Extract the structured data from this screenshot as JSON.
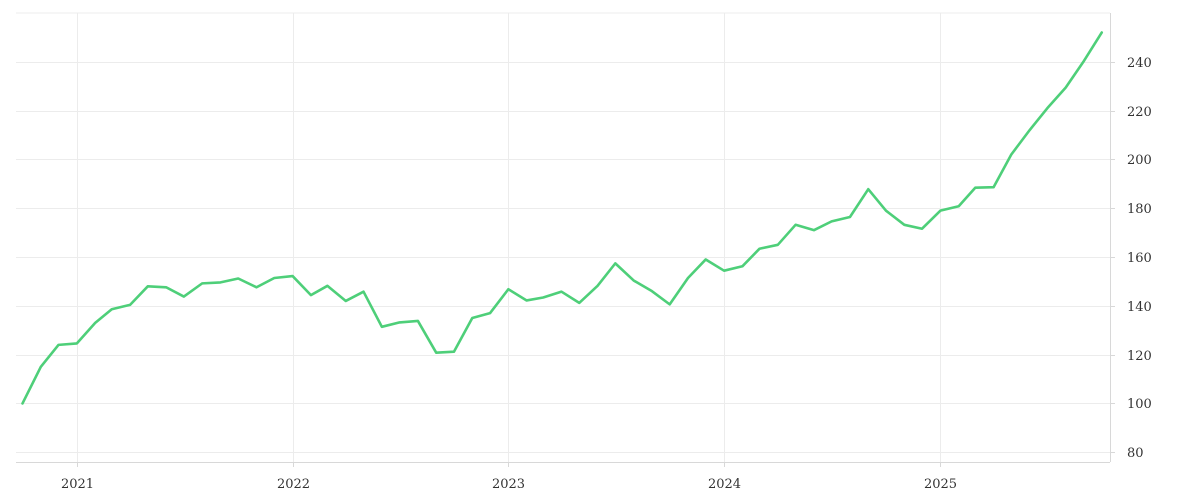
{
  "chart_data": {
    "type": "line",
    "title": "",
    "xlabel": "",
    "ylabel": "",
    "x_ticks": [
      "2021",
      "2022",
      "2023",
      "2024",
      "2025"
    ],
    "y_ticks": [
      80,
      100,
      120,
      140,
      160,
      180,
      200,
      220,
      240
    ],
    "xlim": [
      "2020-09-20",
      "2025-10-15"
    ],
    "ylim": [
      76,
      260
    ],
    "y_axis_position": "right",
    "grid": true,
    "legend": "none",
    "series": [
      {
        "color": "#4ecf79",
        "x": [
          "2020-10-01",
          "2020-11-01",
          "2020-12-01",
          "2021-01-01",
          "2021-02-01",
          "2021-03-01",
          "2021-04-01",
          "2021-05-01",
          "2021-06-01",
          "2021-07-01",
          "2021-08-01",
          "2021-09-01",
          "2021-10-01",
          "2021-11-01",
          "2021-12-01",
          "2022-01-01",
          "2022-02-01",
          "2022-03-01",
          "2022-04-01",
          "2022-05-01",
          "2022-06-01",
          "2022-07-01",
          "2022-08-01",
          "2022-09-01",
          "2022-10-01",
          "2022-11-01",
          "2022-12-01",
          "2023-01-01",
          "2023-02-01",
          "2023-03-01",
          "2023-04-01",
          "2023-05-01",
          "2023-06-01",
          "2023-07-01",
          "2023-08-01",
          "2023-09-01",
          "2023-10-01",
          "2023-11-01",
          "2023-12-01",
          "2024-01-01",
          "2024-02-01",
          "2024-03-01",
          "2024-04-01",
          "2024-05-01",
          "2024-06-01",
          "2024-07-01",
          "2024-08-01",
          "2024-09-01",
          "2024-10-01",
          "2024-11-01",
          "2024-12-01",
          "2025-01-01",
          "2025-02-01",
          "2025-03-01",
          "2025-04-01",
          "2025-05-01",
          "2025-06-01",
          "2025-07-01",
          "2025-08-01",
          "2025-09-01",
          "2025-10-01"
        ],
        "values": [
          100,
          115,
          124,
          124.6,
          133,
          138.6,
          140.4,
          148,
          147.6,
          143.8,
          149.2,
          149.6,
          151.2,
          147.6,
          151.4,
          152.2,
          144.4,
          148.2,
          142,
          145.8,
          131.4,
          133.2,
          133.8,
          120.8,
          121.2,
          135,
          137,
          146.8,
          142.2,
          143.4,
          145.8,
          141.2,
          148.2,
          157.4,
          150.4,
          146,
          140.6,
          151.4,
          159,
          154.4,
          156.2,
          163.4,
          165,
          173.2,
          171,
          174.6,
          176.4,
          187.8,
          179,
          173.2,
          171.6,
          179,
          180.8,
          188.4,
          188.6,
          202,
          212,
          221,
          229.4,
          240.4,
          252
        ]
      }
    ]
  }
}
